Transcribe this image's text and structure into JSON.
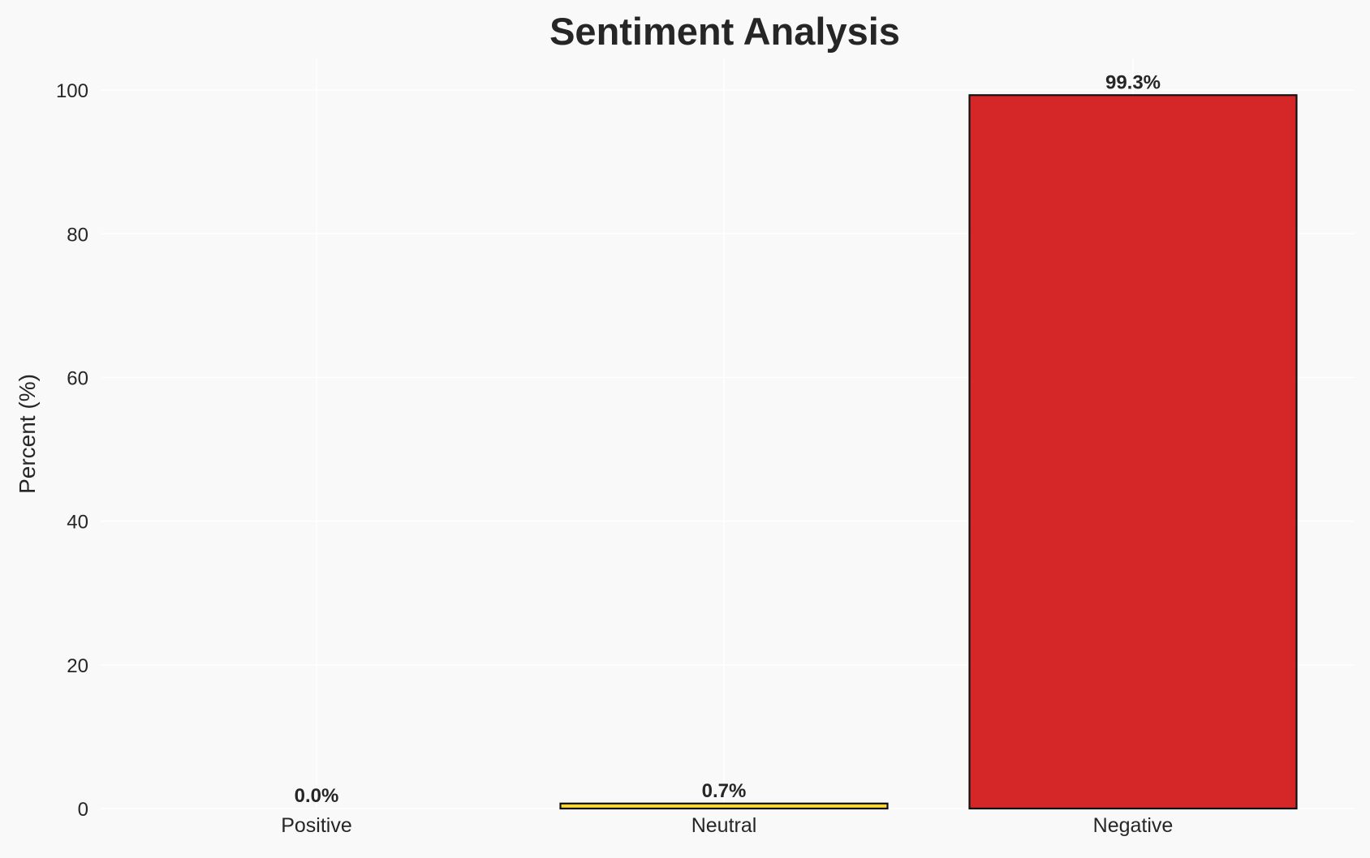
{
  "chart_data": {
    "type": "bar",
    "title": "Sentiment Analysis",
    "xlabel": "",
    "ylabel": "Percent (%)",
    "categories": [
      "Positive",
      "Neutral",
      "Negative"
    ],
    "values": [
      0.0,
      0.7,
      99.3
    ],
    "data_labels": [
      "0.0%",
      "0.7%",
      "99.3%"
    ],
    "colors": [
      "#2ca02c",
      "#fdd835",
      "#d62728"
    ],
    "edge_color": "#111111",
    "ylim": [
      0,
      104.3
    ],
    "yticks": [
      0,
      20,
      40,
      60,
      80,
      100
    ],
    "ytick_labels": [
      "0",
      "20",
      "40",
      "60",
      "80",
      "100"
    ],
    "grid": true,
    "background": "#f9f9f9"
  }
}
